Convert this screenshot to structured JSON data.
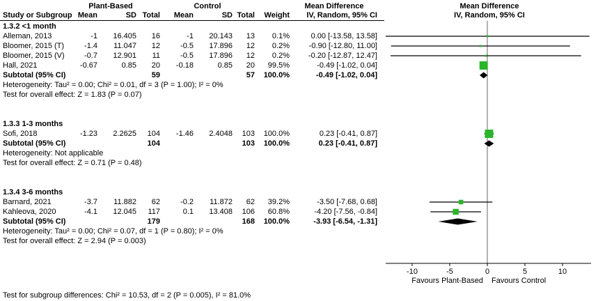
{
  "figure": {
    "header": {
      "group1": "Plant-Based",
      "group2": "Control",
      "md_text_title": "Mean Difference",
      "md_plot_title": "Mean Difference",
      "study_col": "Study or Subgroup",
      "mean": "Mean",
      "sd": "SD",
      "total": "Total",
      "weight": "Weight",
      "ci_method": "IV, Random, 95% CI"
    },
    "axis": {
      "favours_left": "Favours Plant-Based",
      "favours_right": "Favours Control"
    },
    "footer": "Test for subgroup differences: Chi² = 10.53, df = 2 (P = 0.005), I² = 81.0%",
    "colors": {
      "marker_green": "#2bb52b",
      "diamond_black": "#000000",
      "zero_line_gray": "#666666"
    }
  },
  "chart_data": {
    "type": "forest",
    "effect_measure": "Mean Difference",
    "model": "IV, Random, 95% CI",
    "x_ticks": [
      -10,
      -5,
      0,
      5,
      10
    ],
    "x_range": [
      -13.6,
      13.6
    ],
    "subgroups": [
      {
        "label": "1.3.2 <1 month",
        "studies": [
          {
            "name": "Alleman, 2013",
            "mean1": "-1",
            "sd1": "16.405",
            "n1": "16",
            "mean2": "-1",
            "sd2": "20.143",
            "n2": "13",
            "weight": "0.1%",
            "weight_pct": 0.1,
            "md": "0.00 [-13.58, 13.58]",
            "est": 0.0,
            "lo": -13.58,
            "hi": 13.58
          },
          {
            "name": "Bloomer, 2015 (T)",
            "mean1": "-1.4",
            "sd1": "11.047",
            "n1": "12",
            "mean2": "-0.5",
            "sd2": "17.896",
            "n2": "12",
            "weight": "0.2%",
            "weight_pct": 0.2,
            "md": "-0.90 [-12.80, 11.00]",
            "est": -0.9,
            "lo": -12.8,
            "hi": 11.0
          },
          {
            "name": "Bloomer, 2015 (V)",
            "mean1": "-0.7",
            "sd1": "12.901",
            "n1": "11",
            "mean2": "-0.5",
            "sd2": "17.896",
            "n2": "12",
            "weight": "0.2%",
            "weight_pct": 0.2,
            "md": "-0.20 [-12.87, 12.47]",
            "est": -0.2,
            "lo": -12.87,
            "hi": 12.47
          },
          {
            "name": "Hall, 2021",
            "mean1": "-0.67",
            "sd1": "0.85",
            "n1": "20",
            "mean2": "-0.18",
            "sd2": "0.85",
            "n2": "20",
            "weight": "99.5%",
            "weight_pct": 99.5,
            "md": "-0.49 [-1.02, 0.04]",
            "est": -0.49,
            "lo": -1.02,
            "hi": 0.04
          }
        ],
        "subtotal": {
          "label": "Subtotal (95% CI)",
          "n1": "59",
          "n2": "57",
          "weight": "100.0%",
          "md": "-0.49 [-1.02, 0.04]",
          "est": -0.49,
          "lo": -1.02,
          "hi": 0.04
        },
        "heterogeneity": "Heterogeneity: Tau² = 0.00; Chi² = 0.01, df = 3 (P = 1.00); I² = 0%",
        "overall_test": "Test for overall effect: Z = 1.83 (P = 0.07)"
      },
      {
        "label": "1.3.3 1-3 months",
        "studies": [
          {
            "name": "Sofi, 2018",
            "mean1": "-1.23",
            "sd1": "2.2625",
            "n1": "104",
            "mean2": "-1.46",
            "sd2": "2.4048",
            "n2": "103",
            "weight": "100.0%",
            "weight_pct": 100.0,
            "md": "0.23 [-0.41, 0.87]",
            "est": 0.23,
            "lo": -0.41,
            "hi": 0.87
          }
        ],
        "subtotal": {
          "label": "Subtotal (95% CI)",
          "n1": "104",
          "n2": "103",
          "weight": "100.0%",
          "md": "0.23 [-0.41, 0.87]",
          "est": 0.23,
          "lo": -0.41,
          "hi": 0.87
        },
        "heterogeneity": "Heterogeneity: Not applicable",
        "overall_test": "Test for overall effect: Z = 0.71 (P = 0.48)"
      },
      {
        "label": "1.3.4 3-6 months",
        "studies": [
          {
            "name": "Barnard, 2021",
            "mean1": "-3.7",
            "sd1": "11.882",
            "n1": "62",
            "mean2": "-0.2",
            "sd2": "11.872",
            "n2": "62",
            "weight": "39.2%",
            "weight_pct": 39.2,
            "md": "-3.50 [-7.68, 0.68]",
            "est": -3.5,
            "lo": -7.68,
            "hi": 0.68
          },
          {
            "name": "Kahleova, 2020",
            "mean1": "-4.1",
            "sd1": "12.045",
            "n1": "117",
            "mean2": "0.1",
            "sd2": "13.408",
            "n2": "106",
            "weight": "60.8%",
            "weight_pct": 60.8,
            "md": "-4.20 [-7.56, -0.84]",
            "est": -4.2,
            "lo": -7.56,
            "hi": -0.84
          }
        ],
        "subtotal": {
          "label": "Subtotal (95% CI)",
          "n1": "179",
          "n2": "168",
          "weight": "100.0%",
          "md": "-3.93 [-6.54, -1.31]",
          "est": -3.93,
          "lo": -6.54,
          "hi": -1.31
        },
        "heterogeneity": "Heterogeneity: Tau² = 0.00; Chi² = 0.07, df = 1 (P = 0.80); I² = 0%",
        "overall_test": "Test for overall effect: Z = 2.94 (P = 0.003)"
      }
    ]
  }
}
